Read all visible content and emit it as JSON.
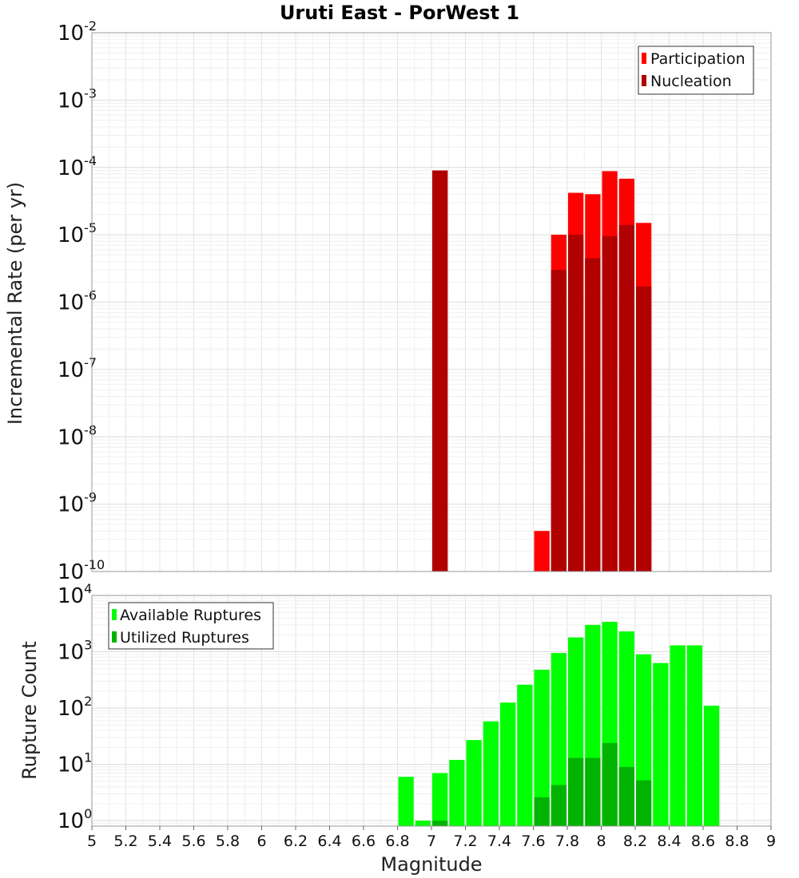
{
  "chart_data": [
    {
      "type": "bar",
      "title": "Uruti East - PorWest 1",
      "xlabel": "Magnitude",
      "ylabel": "Incremental Rate (per yr)",
      "yscale": "log",
      "xlim": [
        5,
        9
      ],
      "ylim": [
        1e-10,
        0.01
      ],
      "bin_width": 0.1,
      "legend": {
        "placement": "top-right"
      },
      "grid": true,
      "series": [
        {
          "name": "Participation",
          "color": "#ff0000",
          "x": [
            7.05,
            7.65,
            7.75,
            7.85,
            7.95,
            8.05,
            8.15,
            8.25
          ],
          "values": [
            9e-05,
            4e-10,
            1e-05,
            4.2e-05,
            4e-05,
            8.8e-05,
            6.8e-05,
            1.5e-05
          ]
        },
        {
          "name": "Nucleation",
          "color": "#b00000",
          "x": [
            7.05,
            7.75,
            7.85,
            7.95,
            8.05,
            8.15,
            8.25
          ],
          "values": [
            9e-05,
            3e-06,
            1e-05,
            4.5e-06,
            9.5e-06,
            1.4e-05,
            1.7e-06
          ]
        }
      ]
    },
    {
      "type": "bar",
      "title": "",
      "xlabel": "Magnitude",
      "ylabel": "Rupture Count",
      "yscale": "log",
      "xlim": [
        5,
        9
      ],
      "ylim": [
        0.8,
        10000.0
      ],
      "bin_width": 0.1,
      "legend": {
        "placement": "top-left"
      },
      "grid": true,
      "series": [
        {
          "name": "Available Ruptures",
          "color": "#00ff00",
          "x": [
            6.85,
            6.95,
            7.05,
            7.15,
            7.25,
            7.35,
            7.45,
            7.55,
            7.65,
            7.75,
            7.85,
            7.95,
            8.05,
            8.15,
            8.25,
            8.35,
            8.45,
            8.55,
            8.65
          ],
          "values": [
            6,
            1,
            7,
            12,
            27,
            58,
            125,
            260,
            480,
            950,
            1800,
            3000,
            3400,
            2300,
            900,
            630,
            1300,
            1300,
            110
          ]
        },
        {
          "name": "Utilized Ruptures",
          "color": "#00b300",
          "x": [
            7.05,
            7.65,
            7.75,
            7.85,
            7.95,
            8.05,
            8.15,
            8.25
          ],
          "values": [
            1,
            2.6,
            4.3,
            13,
            13,
            24,
            9,
            5.2
          ]
        }
      ]
    }
  ],
  "xticks": [
    "5",
    "5.2",
    "5.4",
    "5.6",
    "5.8",
    "6",
    "6.2",
    "6.4",
    "6.6",
    "6.8",
    "7",
    "7.2",
    "7.4",
    "7.6",
    "7.8",
    "8",
    "8.2",
    "8.4",
    "8.6",
    "8.8",
    "9"
  ],
  "top_yticks": [
    {
      "base": "10",
      "exp": "-2"
    },
    {
      "base": "10",
      "exp": "-3"
    },
    {
      "base": "10",
      "exp": "-4"
    },
    {
      "base": "10",
      "exp": "-5"
    },
    {
      "base": "10",
      "exp": "-6"
    },
    {
      "base": "10",
      "exp": "-7"
    },
    {
      "base": "10",
      "exp": "-8"
    },
    {
      "base": "10",
      "exp": "-9"
    },
    {
      "base": "10",
      "exp": "-10"
    }
  ],
  "bottom_yticks": [
    {
      "base": "10",
      "exp": "4"
    },
    {
      "base": "10",
      "exp": "3"
    },
    {
      "base": "10",
      "exp": "2"
    },
    {
      "base": "10",
      "exp": "1"
    },
    {
      "base": "10",
      "exp": "0"
    }
  ]
}
